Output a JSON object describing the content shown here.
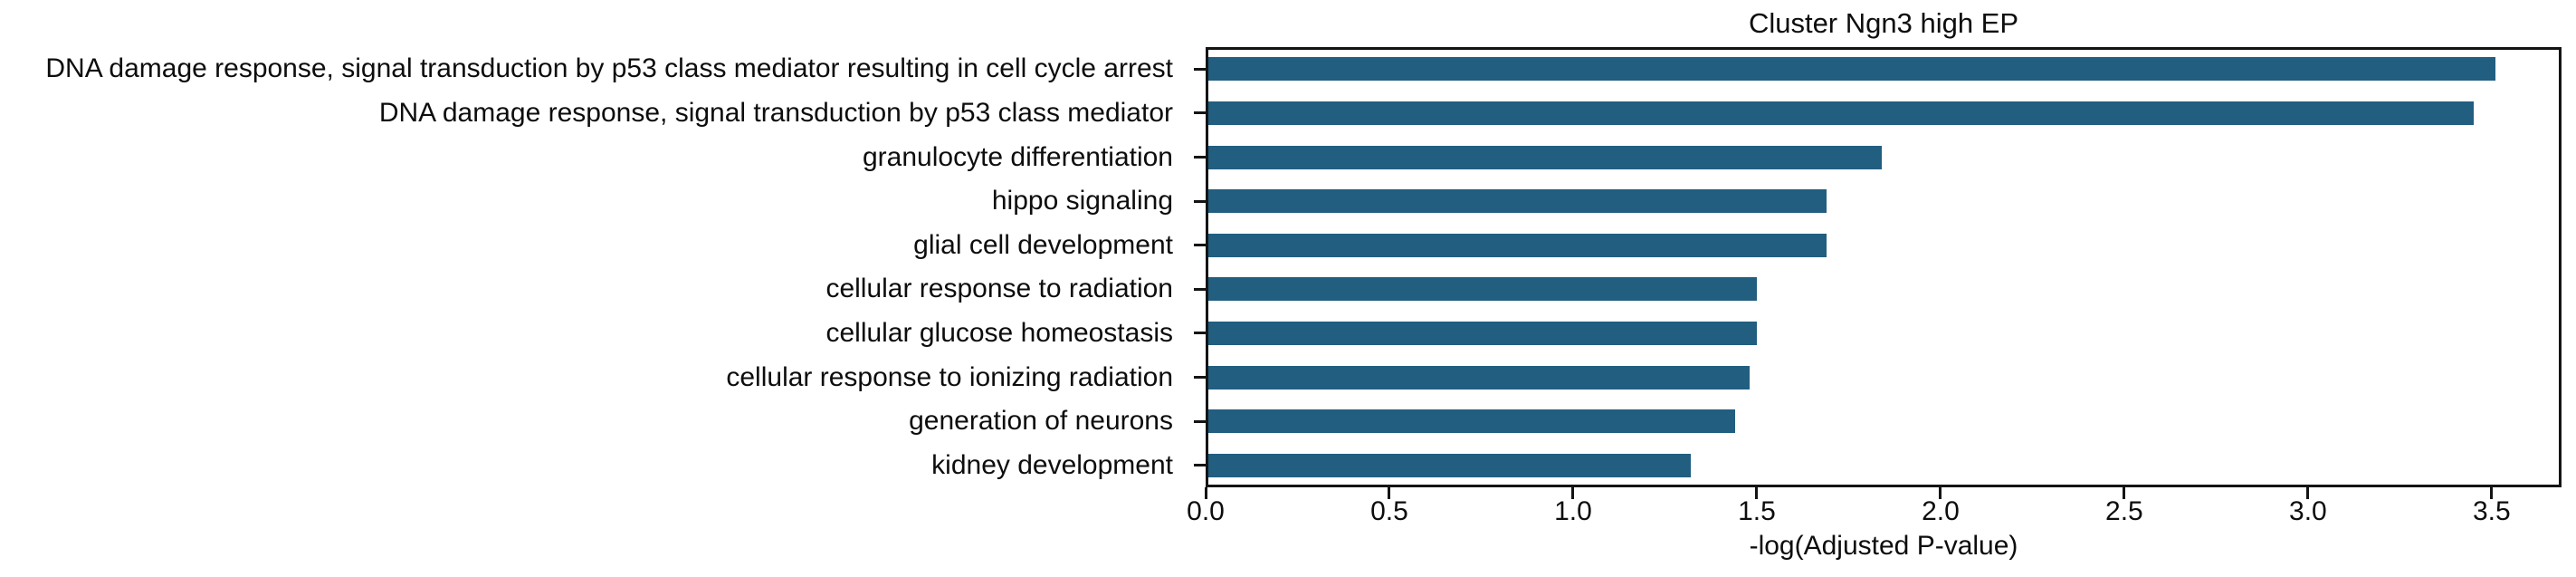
{
  "figure": {
    "background": "#ffffff",
    "text_color": "#0d0d0d",
    "spine_color": "#141414"
  },
  "chart_data": {
    "type": "bar",
    "orientation": "horizontal",
    "title": "Cluster Ngn3 high EP",
    "xlabel": "-log(Adjusted P-value)",
    "ylabel": "",
    "categories": [
      "DNA damage response, signal transduction by p53 class mediator resulting in cell cycle arrest",
      "DNA damage response, signal transduction by p53 class mediator",
      "granulocyte differentiation",
      "hippo signaling",
      "glial cell development",
      "cellular response to radiation",
      "cellular glucose homeostasis",
      "cellular response to ionizing radiation",
      "generation of neurons",
      "kidney development"
    ],
    "values": [
      3.51,
      3.45,
      1.84,
      1.69,
      1.69,
      1.5,
      1.5,
      1.48,
      1.44,
      1.32
    ],
    "xlim": [
      0,
      3.69
    ],
    "xticks": [
      0.0,
      0.5,
      1.0,
      1.5,
      2.0,
      2.5,
      3.0,
      3.5
    ],
    "xtick_labels": [
      "0.0",
      "0.5",
      "1.0",
      "1.5",
      "2.0",
      "2.5",
      "3.0",
      "3.5"
    ],
    "bar_color": "#215e80",
    "grid": false,
    "legend": null
  }
}
